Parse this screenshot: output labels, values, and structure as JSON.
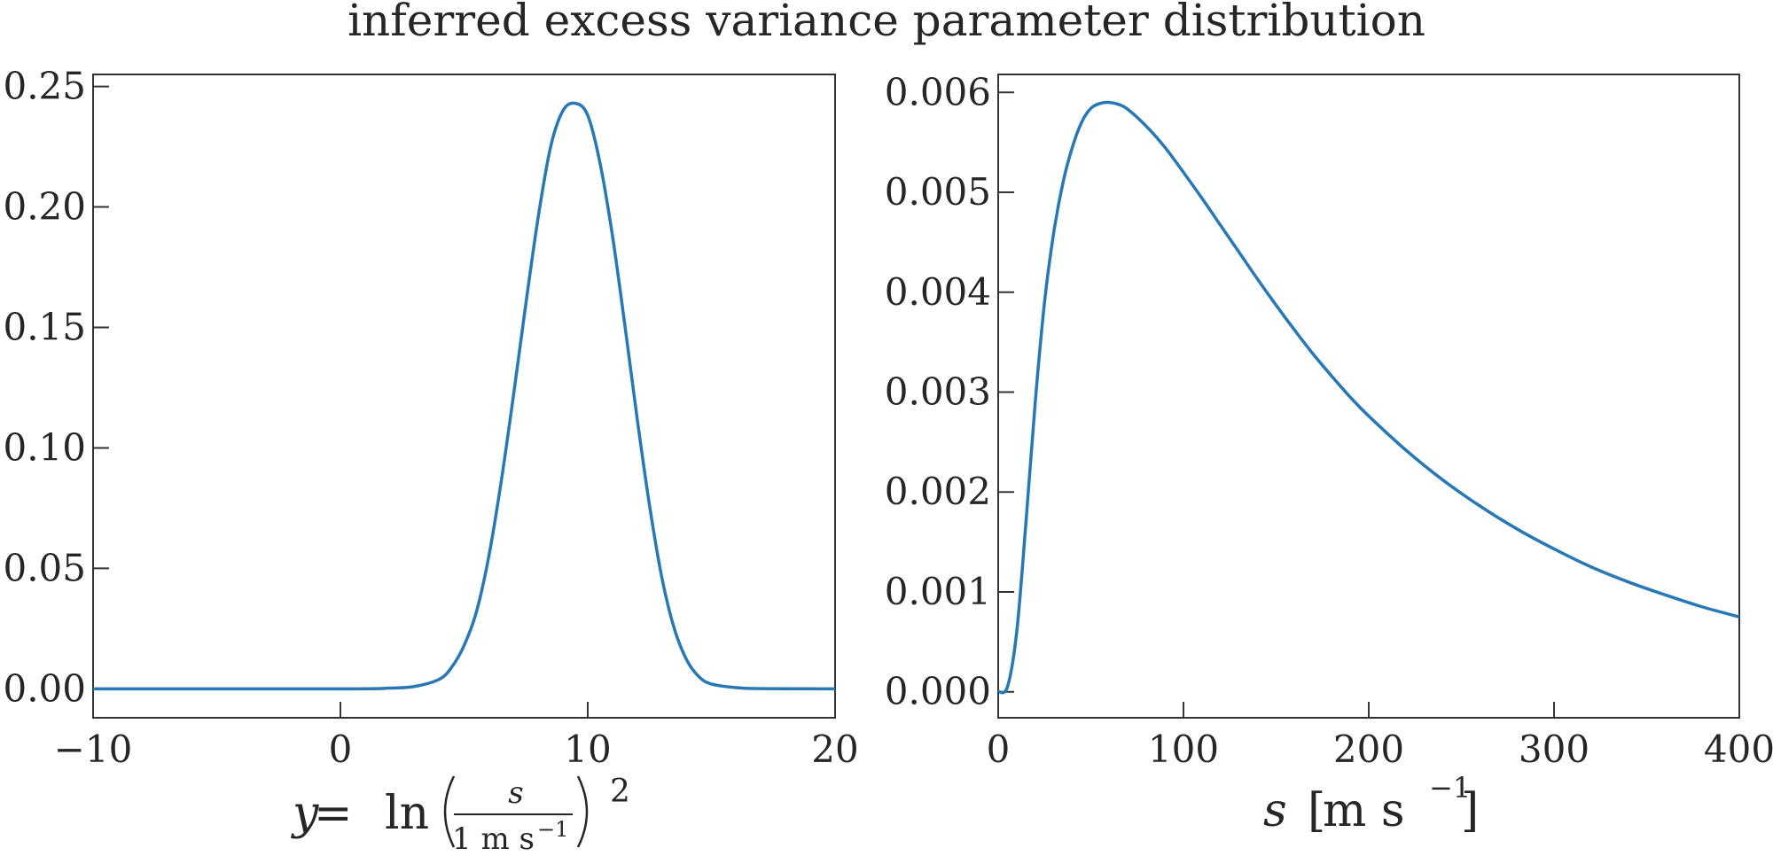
{
  "title": "inferred excess variance parameter distribution",
  "colors": {
    "line": "#2878b5",
    "axis": "#333333",
    "text": "#262626"
  },
  "chart_data": [
    {
      "type": "line",
      "xlim": [
        -10,
        20
      ],
      "ylim": [
        -0.012,
        0.255
      ],
      "xticks": [
        -10,
        0,
        10,
        20
      ],
      "xtick_labels": [
        "−10",
        "0",
        "10",
        "20"
      ],
      "yticks": [
        0.0,
        0.05,
        0.1,
        0.15,
        0.2,
        0.25
      ],
      "ytick_labels": [
        "0.00",
        "0.05",
        "0.10",
        "0.15",
        "0.20",
        "0.25"
      ],
      "xlabel": {
        "lhs": "y",
        "eq": " = ",
        "fn": "ln",
        "num": "s",
        "den": "1 m s",
        "den_exp": "−1",
        "power": "2"
      },
      "grid": false,
      "series": [
        {
          "x": [
            -10,
            0,
            2,
            3,
            4,
            4.5,
            5,
            5.5,
            6,
            6.5,
            7,
            7.5,
            8,
            8.5,
            9,
            9.5,
            10,
            10.5,
            11,
            11.5,
            12,
            12.5,
            13,
            13.5,
            14,
            14.5,
            15,
            16,
            17,
            20
          ],
          "y": [
            0.0,
            0.0,
            0.0003,
            0.001,
            0.004,
            0.009,
            0.018,
            0.032,
            0.055,
            0.086,
            0.122,
            0.16,
            0.196,
            0.225,
            0.24,
            0.243,
            0.238,
            0.218,
            0.188,
            0.151,
            0.112,
            0.076,
            0.046,
            0.025,
            0.012,
            0.005,
            0.002,
            0.0005,
            0.0001,
            0.0
          ]
        }
      ]
    },
    {
      "type": "line",
      "xlim": [
        0,
        400
      ],
      "ylim": [
        -0.00026,
        0.00618
      ],
      "xticks": [
        0,
        100,
        200,
        300,
        400
      ],
      "xtick_labels": [
        "0",
        "100",
        "200",
        "300",
        "400"
      ],
      "yticks": [
        0.0,
        0.001,
        0.002,
        0.003,
        0.004,
        0.005,
        0.006
      ],
      "ytick_labels": [
        "0.000",
        "0.001",
        "0.002",
        "0.003",
        "0.004",
        "0.005",
        "0.006"
      ],
      "xlabel": {
        "var": "s",
        "unit": "m s",
        "unit_exp": "−1",
        "open": "[",
        "close": "]"
      },
      "grid": false,
      "series": [
        {
          "x": [
            0,
            5,
            10,
            15,
            20,
            25,
            30,
            35,
            40,
            45,
            50,
            55,
            60,
            65,
            70,
            80,
            90,
            100,
            110,
            120,
            130,
            140,
            150,
            160,
            170,
            180,
            190,
            200,
            220,
            240,
            260,
            280,
            300,
            320,
            340,
            360,
            380,
            400
          ],
          "y": [
            0.0,
            5e-05,
            0.0006,
            0.0017,
            0.0029,
            0.0039,
            0.0046,
            0.0051,
            0.00545,
            0.0057,
            0.00584,
            0.00589,
            0.0059,
            0.00588,
            0.00583,
            0.00566,
            0.00545,
            0.0052,
            0.00494,
            0.00467,
            0.0044,
            0.00413,
            0.00387,
            0.00362,
            0.00338,
            0.00316,
            0.00295,
            0.00276,
            0.00242,
            0.00212,
            0.00186,
            0.00163,
            0.00143,
            0.00125,
            0.0011,
            0.00097,
            0.00085,
            0.00075
          ]
        }
      ]
    }
  ]
}
